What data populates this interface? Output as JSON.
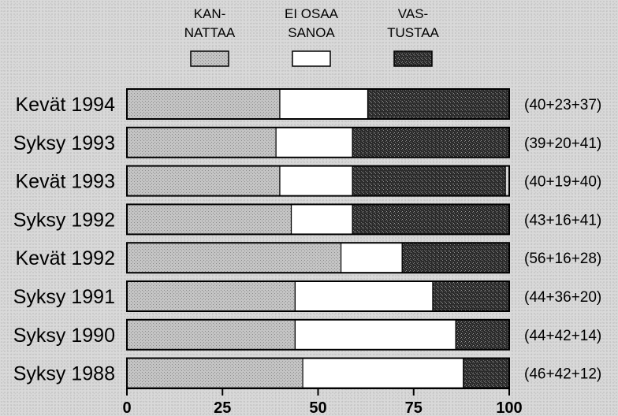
{
  "chart_data": {
    "type": "bar",
    "stacked": true,
    "orientation": "horizontal",
    "categories": [
      "Kevät 1994",
      "Syksy 1993",
      "Kevät 1993",
      "Syksy 1992",
      "Kevät 1992",
      "Syksy 1991",
      "Syksy 1990",
      "Syksy 1988"
    ],
    "series": [
      {
        "name": "KAN-\nNATTAA",
        "name_lines": [
          "KAN-",
          "NATTAA"
        ],
        "values": [
          40,
          39,
          40,
          43,
          56,
          44,
          44,
          46
        ],
        "pattern": "light-dotted"
      },
      {
        "name": "EI OSAA\nSANOA",
        "name_lines": [
          "EI OSAA",
          "SANOA"
        ],
        "values": [
          23,
          20,
          19,
          16,
          16,
          36,
          42,
          42
        ],
        "pattern": "white"
      },
      {
        "name": "VAS-\nTUSTAA",
        "name_lines": [
          "VAS-",
          "TUSTAA"
        ],
        "values": [
          37,
          41,
          40,
          41,
          28,
          20,
          14,
          12
        ],
        "pattern": "dark-speckled"
      }
    ],
    "bar_annotations": [
      "(40+23+37)",
      "(39+20+41)",
      "(40+19+40)",
      "(43+16+41)",
      "(56+16+28)",
      "(44+36+20)",
      "(44+42+14)",
      "(46+42+12)"
    ],
    "x_ticks": [
      0,
      25,
      50,
      75,
      100
    ],
    "xlim": [
      0,
      100
    ],
    "title": "",
    "xlabel": "",
    "ylabel": "",
    "legend_position": "top-center",
    "grid": false,
    "colors": {
      "light": "#b9b9b9",
      "white": "#ffffff",
      "dark": "#2b2b2b"
    }
  }
}
